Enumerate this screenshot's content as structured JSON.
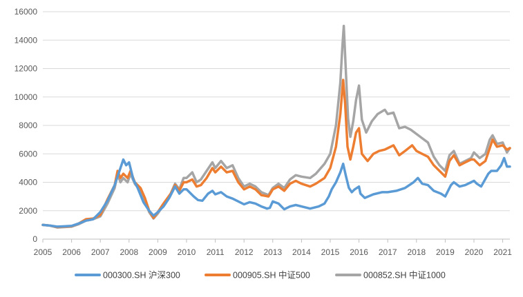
{
  "chart_data": {
    "type": "line",
    "title": "",
    "xlabel": "",
    "ylabel": "",
    "xlim": [
      2005.0,
      2021.25
    ],
    "ylim": [
      0,
      16000
    ],
    "x_ticks": [
      "2005",
      "2006",
      "2007",
      "2008",
      "2009",
      "2010",
      "2011",
      "2012",
      "2013",
      "2014",
      "2015",
      "2016",
      "2017",
      "2018",
      "2019",
      "2020",
      "2021"
    ],
    "y_ticks": [
      "0",
      "2000",
      "4000",
      "6000",
      "8000",
      "10000",
      "12000",
      "14000",
      "16000"
    ],
    "grid": "horizontal",
    "legend": "bottom",
    "series": [
      {
        "name": "000300.SH 沪深300",
        "color": "#5B9BD5",
        "points": [
          [
            2005.0,
            1000
          ],
          [
            2005.25,
            950
          ],
          [
            2005.5,
            880
          ],
          [
            2005.75,
            900
          ],
          [
            2006.0,
            930
          ],
          [
            2006.25,
            1100
          ],
          [
            2006.5,
            1300
          ],
          [
            2006.75,
            1400
          ],
          [
            2007.0,
            1900
          ],
          [
            2007.25,
            2700
          ],
          [
            2007.5,
            3800
          ],
          [
            2007.7,
            5000
          ],
          [
            2007.8,
            5600
          ],
          [
            2007.9,
            5200
          ],
          [
            2008.0,
            5400
          ],
          [
            2008.15,
            4200
          ],
          [
            2008.3,
            3600
          ],
          [
            2008.5,
            2600
          ],
          [
            2008.7,
            2000
          ],
          [
            2008.85,
            1650
          ],
          [
            2009.0,
            1900
          ],
          [
            2009.2,
            2300
          ],
          [
            2009.4,
            2900
          ],
          [
            2009.6,
            3700
          ],
          [
            2009.75,
            3200
          ],
          [
            2009.9,
            3500
          ],
          [
            2010.0,
            3500
          ],
          [
            2010.25,
            3000
          ],
          [
            2010.4,
            2750
          ],
          [
            2010.55,
            2700
          ],
          [
            2010.75,
            3200
          ],
          [
            2010.9,
            3400
          ],
          [
            2011.0,
            3150
          ],
          [
            2011.2,
            3300
          ],
          [
            2011.4,
            3000
          ],
          [
            2011.6,
            2850
          ],
          [
            2011.8,
            2650
          ],
          [
            2012.0,
            2450
          ],
          [
            2012.2,
            2600
          ],
          [
            2012.4,
            2500
          ],
          [
            2012.6,
            2300
          ],
          [
            2012.8,
            2150
          ],
          [
            2012.9,
            2200
          ],
          [
            2013.0,
            2650
          ],
          [
            2013.2,
            2500
          ],
          [
            2013.4,
            2100
          ],
          [
            2013.6,
            2300
          ],
          [
            2013.8,
            2400
          ],
          [
            2014.0,
            2300
          ],
          [
            2014.3,
            2150
          ],
          [
            2014.6,
            2300
          ],
          [
            2014.8,
            2500
          ],
          [
            2014.95,
            3000
          ],
          [
            2015.05,
            3500
          ],
          [
            2015.2,
            4000
          ],
          [
            2015.35,
            4700
          ],
          [
            2015.45,
            5300
          ],
          [
            2015.55,
            4400
          ],
          [
            2015.65,
            3600
          ],
          [
            2015.75,
            3300
          ],
          [
            2015.85,
            3500
          ],
          [
            2016.0,
            3700
          ],
          [
            2016.05,
            3200
          ],
          [
            2016.2,
            2900
          ],
          [
            2016.5,
            3150
          ],
          [
            2016.8,
            3300
          ],
          [
            2017.0,
            3300
          ],
          [
            2017.3,
            3400
          ],
          [
            2017.6,
            3600
          ],
          [
            2017.9,
            4000
          ],
          [
            2018.05,
            4300
          ],
          [
            2018.2,
            3900
          ],
          [
            2018.4,
            3800
          ],
          [
            2018.6,
            3400
          ],
          [
            2018.85,
            3200
          ],
          [
            2019.0,
            3000
          ],
          [
            2019.2,
            3800
          ],
          [
            2019.3,
            4000
          ],
          [
            2019.5,
            3700
          ],
          [
            2019.7,
            3800
          ],
          [
            2019.9,
            4000
          ],
          [
            2020.0,
            4100
          ],
          [
            2020.1,
            3900
          ],
          [
            2020.25,
            3700
          ],
          [
            2020.5,
            4600
          ],
          [
            2020.6,
            4800
          ],
          [
            2020.8,
            4800
          ],
          [
            2020.95,
            5200
          ],
          [
            2021.05,
            5700
          ],
          [
            2021.15,
            5100
          ],
          [
            2021.25,
            5100
          ]
        ]
      },
      {
        "name": "000905.SH 中证500",
        "color": "#ED7D31",
        "points": [
          [
            2005.0,
            1000
          ],
          [
            2005.25,
            950
          ],
          [
            2005.5,
            850
          ],
          [
            2005.75,
            880
          ],
          [
            2006.0,
            900
          ],
          [
            2006.25,
            1100
          ],
          [
            2006.5,
            1400
          ],
          [
            2006.75,
            1450
          ],
          [
            2007.0,
            1700
          ],
          [
            2007.25,
            2800
          ],
          [
            2007.5,
            3800
          ],
          [
            2007.6,
            4800
          ],
          [
            2007.7,
            4300
          ],
          [
            2007.8,
            4600
          ],
          [
            2007.95,
            4300
          ],
          [
            2008.05,
            4800
          ],
          [
            2008.2,
            4000
          ],
          [
            2008.4,
            3600
          ],
          [
            2008.55,
            2900
          ],
          [
            2008.7,
            2000
          ],
          [
            2008.85,
            1500
          ],
          [
            2009.0,
            1900
          ],
          [
            2009.2,
            2500
          ],
          [
            2009.45,
            3200
          ],
          [
            2009.6,
            3800
          ],
          [
            2009.75,
            3400
          ],
          [
            2009.9,
            4000
          ],
          [
            2010.0,
            4000
          ],
          [
            2010.2,
            4200
          ],
          [
            2010.35,
            3700
          ],
          [
            2010.5,
            3800
          ],
          [
            2010.7,
            4300
          ],
          [
            2010.9,
            5000
          ],
          [
            2011.0,
            4700
          ],
          [
            2011.2,
            5100
          ],
          [
            2011.4,
            4700
          ],
          [
            2011.6,
            4800
          ],
          [
            2011.8,
            4000
          ],
          [
            2012.0,
            3500
          ],
          [
            2012.2,
            3700
          ],
          [
            2012.4,
            3500
          ],
          [
            2012.6,
            3100
          ],
          [
            2012.85,
            3000
          ],
          [
            2013.0,
            3500
          ],
          [
            2013.2,
            3700
          ],
          [
            2013.4,
            3400
          ],
          [
            2013.6,
            3900
          ],
          [
            2013.8,
            4100
          ],
          [
            2014.0,
            3900
          ],
          [
            2014.3,
            3700
          ],
          [
            2014.5,
            3900
          ],
          [
            2014.8,
            4300
          ],
          [
            2015.0,
            5000
          ],
          [
            2015.2,
            6500
          ],
          [
            2015.35,
            8800
          ],
          [
            2015.45,
            11200
          ],
          [
            2015.52,
            9500
          ],
          [
            2015.6,
            6500
          ],
          [
            2015.7,
            5600
          ],
          [
            2015.8,
            6500
          ],
          [
            2015.9,
            7500
          ],
          [
            2016.0,
            7800
          ],
          [
            2016.1,
            6000
          ],
          [
            2016.3,
            5500
          ],
          [
            2016.5,
            6000
          ],
          [
            2016.7,
            6200
          ],
          [
            2016.9,
            6300
          ],
          [
            2017.0,
            6400
          ],
          [
            2017.2,
            6600
          ],
          [
            2017.4,
            5900
          ],
          [
            2017.6,
            6200
          ],
          [
            2017.85,
            6600
          ],
          [
            2018.0,
            6200
          ],
          [
            2018.2,
            6000
          ],
          [
            2018.4,
            5800
          ],
          [
            2018.6,
            5200
          ],
          [
            2018.8,
            4800
          ],
          [
            2019.0,
            4400
          ],
          [
            2019.15,
            5500
          ],
          [
            2019.3,
            5900
          ],
          [
            2019.5,
            5200
          ],
          [
            2019.7,
            5400
          ],
          [
            2019.9,
            5600
          ],
          [
            2020.0,
            5600
          ],
          [
            2020.2,
            5200
          ],
          [
            2020.4,
            5500
          ],
          [
            2020.55,
            6400
          ],
          [
            2020.65,
            7000
          ],
          [
            2020.8,
            6500
          ],
          [
            2021.0,
            6600
          ],
          [
            2021.15,
            6300
          ],
          [
            2021.25,
            6400
          ]
        ]
      },
      {
        "name": "000852.SH 中证1000",
        "color": "#A5A5A5",
        "points": [
          [
            2005.0,
            1000
          ],
          [
            2005.25,
            950
          ],
          [
            2005.5,
            820
          ],
          [
            2005.75,
            850
          ],
          [
            2006.0,
            880
          ],
          [
            2006.25,
            1050
          ],
          [
            2006.5,
            1300
          ],
          [
            2006.75,
            1400
          ],
          [
            2007.0,
            1600
          ],
          [
            2007.25,
            2500
          ],
          [
            2007.5,
            3600
          ],
          [
            2007.6,
            4600
          ],
          [
            2007.7,
            4000
          ],
          [
            2007.8,
            4300
          ],
          [
            2007.95,
            4000
          ],
          [
            2008.05,
            4600
          ],
          [
            2008.2,
            3900
          ],
          [
            2008.4,
            3400
          ],
          [
            2008.55,
            2700
          ],
          [
            2008.7,
            1900
          ],
          [
            2008.85,
            1450
          ],
          [
            2009.0,
            1800
          ],
          [
            2009.2,
            2400
          ],
          [
            2009.45,
            3200
          ],
          [
            2009.6,
            3900
          ],
          [
            2009.75,
            3500
          ],
          [
            2009.9,
            4300
          ],
          [
            2010.0,
            4300
          ],
          [
            2010.2,
            4700
          ],
          [
            2010.35,
            4000
          ],
          [
            2010.5,
            4200
          ],
          [
            2010.7,
            4800
          ],
          [
            2010.9,
            5400
          ],
          [
            2011.0,
            5000
          ],
          [
            2011.2,
            5500
          ],
          [
            2011.4,
            5000
          ],
          [
            2011.6,
            5200
          ],
          [
            2011.8,
            4300
          ],
          [
            2012.0,
            3700
          ],
          [
            2012.2,
            3900
          ],
          [
            2012.4,
            3700
          ],
          [
            2012.6,
            3300
          ],
          [
            2012.85,
            3100
          ],
          [
            2013.0,
            3600
          ],
          [
            2013.2,
            3900
          ],
          [
            2013.4,
            3600
          ],
          [
            2013.6,
            4200
          ],
          [
            2013.8,
            4500
          ],
          [
            2014.0,
            4400
          ],
          [
            2014.3,
            4300
          ],
          [
            2014.5,
            4600
          ],
          [
            2014.8,
            5300
          ],
          [
            2015.0,
            6000
          ],
          [
            2015.2,
            8000
          ],
          [
            2015.35,
            11000
          ],
          [
            2015.42,
            13500
          ],
          [
            2015.47,
            15000
          ],
          [
            2015.55,
            11500
          ],
          [
            2015.62,
            8500
          ],
          [
            2015.7,
            7200
          ],
          [
            2015.8,
            8300
          ],
          [
            2015.9,
            9800
          ],
          [
            2016.0,
            10800
          ],
          [
            2016.1,
            8400
          ],
          [
            2016.25,
            7500
          ],
          [
            2016.45,
            8300
          ],
          [
            2016.65,
            8800
          ],
          [
            2016.9,
            9100
          ],
          [
            2017.0,
            8800
          ],
          [
            2017.2,
            8900
          ],
          [
            2017.4,
            7800
          ],
          [
            2017.6,
            7900
          ],
          [
            2017.8,
            7700
          ],
          [
            2018.0,
            7400
          ],
          [
            2018.2,
            7100
          ],
          [
            2018.4,
            6800
          ],
          [
            2018.6,
            5800
          ],
          [
            2018.8,
            5200
          ],
          [
            2019.0,
            4800
          ],
          [
            2019.15,
            5900
          ],
          [
            2019.3,
            6200
          ],
          [
            2019.5,
            5300
          ],
          [
            2019.7,
            5500
          ],
          [
            2019.9,
            5700
          ],
          [
            2020.0,
            6100
          ],
          [
            2020.2,
            5700
          ],
          [
            2020.4,
            6000
          ],
          [
            2020.55,
            7000
          ],
          [
            2020.65,
            7300
          ],
          [
            2020.8,
            6700
          ],
          [
            2021.0,
            6800
          ],
          [
            2021.15,
            6100
          ],
          [
            2021.25,
            6400
          ]
        ]
      }
    ]
  }
}
